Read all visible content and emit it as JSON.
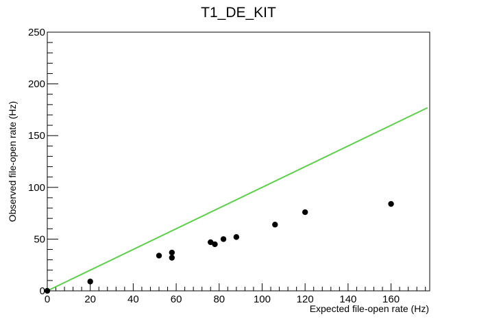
{
  "chart_data": {
    "type": "scatter",
    "title": "T1_DE_KIT",
    "xlabel": "Expected file-open rate (Hz)",
    "ylabel": "Observed file-open rate (Hz)",
    "xlim": [
      0,
      178
    ],
    "ylim": [
      0,
      250
    ],
    "x_ticks": [
      0,
      20,
      40,
      60,
      80,
      100,
      120,
      140,
      160
    ],
    "y_ticks": [
      0,
      50,
      100,
      150,
      200,
      250
    ],
    "grid": false,
    "legend": "none",
    "colors": {
      "points": "#000000",
      "reference_line": "#5ccf4a"
    },
    "points": [
      {
        "x": 0,
        "y": 0
      },
      {
        "x": 20,
        "y": 9
      },
      {
        "x": 52,
        "y": 34
      },
      {
        "x": 58,
        "y": 37
      },
      {
        "x": 58,
        "y": 32
      },
      {
        "x": 76,
        "y": 47
      },
      {
        "x": 78,
        "y": 45
      },
      {
        "x": 82,
        "y": 50
      },
      {
        "x": 88,
        "y": 52
      },
      {
        "x": 106,
        "y": 64
      },
      {
        "x": 120,
        "y": 76
      },
      {
        "x": 160,
        "y": 84
      }
    ],
    "reference_line": {
      "x": [
        0,
        177
      ],
      "y": [
        0,
        177
      ]
    }
  }
}
